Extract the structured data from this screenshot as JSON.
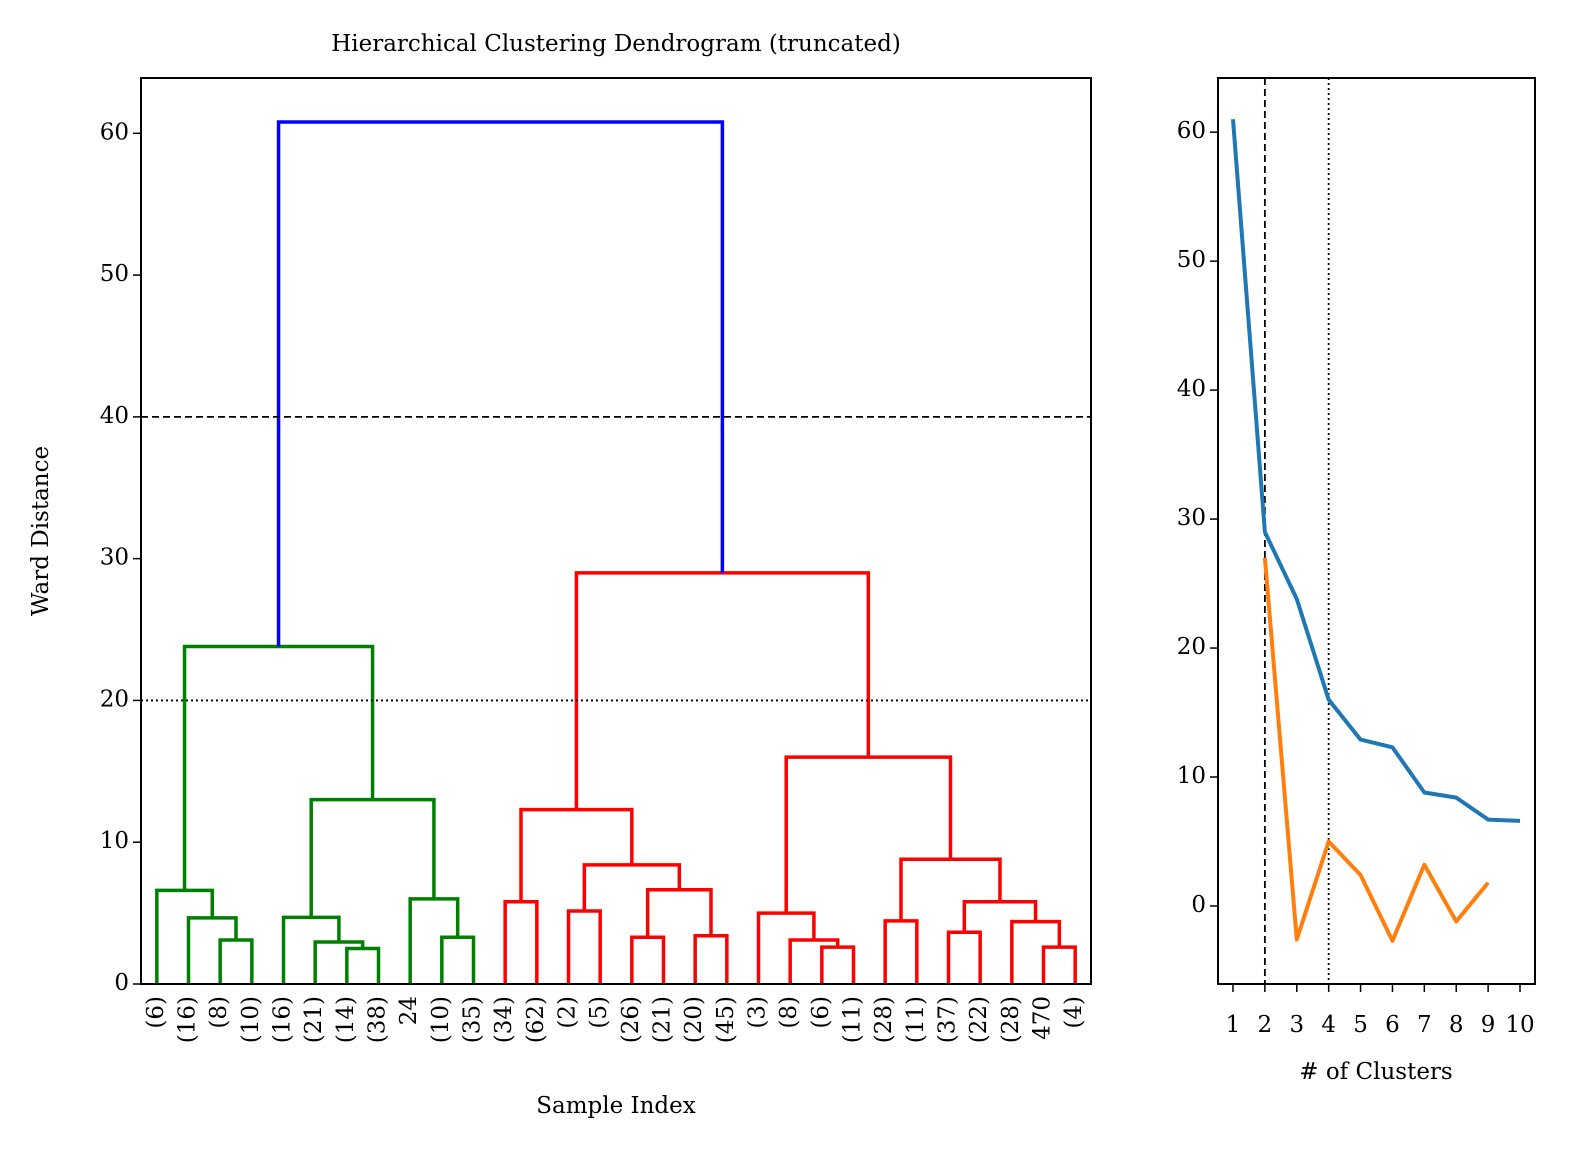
{
  "chart_data": [
    {
      "type": "dendrogram",
      "title": "Hierarchical Clustering Dendrogram (truncated)",
      "x_label": "Sample Index",
      "y_label": "Ward Distance",
      "categories": [
        "(6)",
        "(16)",
        "(8)",
        "(10)",
        "(16)",
        "(21)",
        "(14)",
        "(38)",
        "24",
        "(10)",
        "(35)",
        "(34)",
        "(62)",
        "(2)",
        "(5)",
        "(26)",
        "(21)",
        "(20)",
        "(45)",
        "(3)",
        "(8)",
        "(6)",
        "(11)",
        "(28)",
        "(11)",
        "(37)",
        "(22)",
        "(28)",
        "470",
        "(4)"
      ],
      "links": [
        {
          "left": 2,
          "right": 3,
          "height": 3.1,
          "color": "#008000"
        },
        {
          "left": 1,
          "right": 30,
          "height": 4.66,
          "color": "#008000"
        },
        {
          "left": 0,
          "right": 31,
          "height": 6.6,
          "color": "#008000"
        },
        {
          "left": 6,
          "right": 7,
          "height": 2.5,
          "color": "#008000"
        },
        {
          "left": 5,
          "right": 33,
          "height": 2.96,
          "color": "#008000"
        },
        {
          "left": 4,
          "right": 34,
          "height": 4.7,
          "color": "#008000"
        },
        {
          "left": 9,
          "right": 10,
          "height": 3.3,
          "color": "#008000"
        },
        {
          "left": 8,
          "right": 36,
          "height": 6.0,
          "color": "#008000"
        },
        {
          "left": 35,
          "right": 37,
          "height": 13.0,
          "color": "#008000"
        },
        {
          "left": 32,
          "right": 38,
          "height": 23.8,
          "color": "#008000"
        },
        {
          "left": 11,
          "right": 12,
          "height": 5.8,
          "color": "#ff0000"
        },
        {
          "left": 13,
          "right": 14,
          "height": 5.15,
          "color": "#ff0000"
        },
        {
          "left": 15,
          "right": 16,
          "height": 3.3,
          "color": "#ff0000"
        },
        {
          "left": 17,
          "right": 18,
          "height": 3.4,
          "color": "#ff0000"
        },
        {
          "left": 42,
          "right": 43,
          "height": 6.65,
          "color": "#ff0000"
        },
        {
          "left": 41,
          "right": 44,
          "height": 8.4,
          "color": "#ff0000"
        },
        {
          "left": 40,
          "right": 45,
          "height": 12.3,
          "color": "#ff0000"
        },
        {
          "left": 21,
          "right": 22,
          "height": 2.6,
          "color": "#ff0000"
        },
        {
          "left": 20,
          "right": 47,
          "height": 3.1,
          "color": "#ff0000"
        },
        {
          "left": 19,
          "right": 48,
          "height": 5.0,
          "color": "#ff0000"
        },
        {
          "left": 23,
          "right": 24,
          "height": 4.45,
          "color": "#ff0000"
        },
        {
          "left": 25,
          "right": 26,
          "height": 3.65,
          "color": "#ff0000"
        },
        {
          "left": 28,
          "right": 29,
          "height": 2.6,
          "color": "#ff0000"
        },
        {
          "left": 27,
          "right": 52,
          "height": 4.4,
          "color": "#ff0000"
        },
        {
          "left": 51,
          "right": 53,
          "height": 5.8,
          "color": "#ff0000"
        },
        {
          "left": 50,
          "right": 54,
          "height": 8.8,
          "color": "#ff0000"
        },
        {
          "left": 49,
          "right": 55,
          "height": 16.0,
          "color": "#ff0000"
        },
        {
          "left": 46,
          "right": 56,
          "height": 29.0,
          "color": "#ff0000"
        },
        {
          "left": 39,
          "right": 57,
          "height": 60.8,
          "color": "#0000ff"
        }
      ],
      "hlines": [
        {
          "value": 40,
          "style": "dashed"
        },
        {
          "value": 20,
          "style": "dotted"
        }
      ],
      "ylim": [
        0,
        63.9
      ],
      "yticks": [
        0,
        10,
        20,
        30,
        40,
        50,
        60
      ]
    },
    {
      "type": "line",
      "x_label": "# of Clusters",
      "x": [
        1,
        2,
        3,
        4,
        5,
        6,
        7,
        8,
        9,
        10
      ],
      "series": [
        {
          "color": "#1f77b4",
          "values": [
            61.0,
            29.0,
            23.8,
            16.0,
            12.9,
            12.3,
            8.8,
            8.4,
            6.7,
            6.6
          ]
        },
        {
          "color": "#ff7f0e",
          "values": [
            null,
            27.0,
            -2.6,
            5.0,
            2.4,
            -2.7,
            3.2,
            -1.2,
            1.8,
            null
          ]
        }
      ],
      "vlines": [
        {
          "value": 2,
          "style": "dashed"
        },
        {
          "value": 4,
          "style": "dotted"
        }
      ],
      "xlim": [
        0.53,
        10.47
      ],
      "xticks": [
        1,
        2,
        3,
        4,
        5,
        6,
        7,
        8,
        9,
        10
      ],
      "ylim": [
        -6.05,
        64.2
      ],
      "yticks": [
        0,
        10,
        20,
        30,
        40,
        50,
        60
      ]
    }
  ]
}
